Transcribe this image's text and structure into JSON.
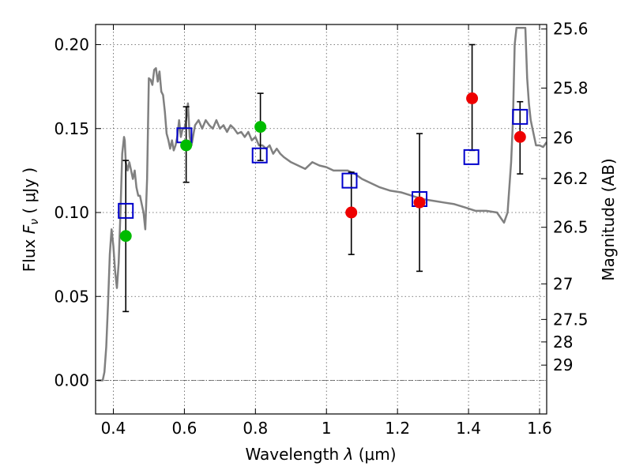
{
  "chart_data": {
    "type": "scatter",
    "xlabel_prefix": "Wavelength",
    "xlabel_symbol": "λ",
    "xlabel_unit": "(μm)",
    "ylabel_prefix": "Flux",
    "ylabel_symbol": "F",
    "ylabel_subscript": "ν",
    "ylabel_unit": "( μJy )",
    "y2label": "Magnitude (AB)",
    "xlim": [
      0.35,
      1.62
    ],
    "ylim": [
      -0.02,
      0.212
    ],
    "xticks": [
      {
        "value": 0.4,
        "label": "0.4"
      },
      {
        "value": 0.6,
        "label": "0.6"
      },
      {
        "value": 0.8,
        "label": "0.8"
      },
      {
        "value": 1.0,
        "label": "1"
      },
      {
        "value": 1.2,
        "label": "1.2"
      },
      {
        "value": 1.4,
        "label": "1.4"
      },
      {
        "value": 1.6,
        "label": "1.6"
      }
    ],
    "yticks": [
      {
        "value": 0.0,
        "label": "0.00"
      },
      {
        "value": 0.05,
        "label": "0.05"
      },
      {
        "value": 0.1,
        "label": "0.10"
      },
      {
        "value": 0.15,
        "label": "0.15"
      },
      {
        "value": 0.2,
        "label": "0.20"
      }
    ],
    "y2ticks": [
      {
        "flux": 0.2093,
        "label": "25.6"
      },
      {
        "flux": 0.1741,
        "label": "25.8"
      },
      {
        "flux": 0.1445,
        "label": "26"
      },
      {
        "flux": 0.1202,
        "label": "26.2"
      },
      {
        "flux": 0.0912,
        "label": "26.5"
      },
      {
        "flux": 0.0575,
        "label": "27"
      },
      {
        "flux": 0.0363,
        "label": "27.5"
      },
      {
        "flux": 0.0229,
        "label": "28"
      },
      {
        "flux": 0.0091,
        "label": "29"
      }
    ],
    "colors": {
      "sed": "#808080",
      "model": "#0000cc",
      "green": "#00bb00",
      "red": "#ee0000",
      "errorbar": "#000000",
      "zero_line": "#555555"
    },
    "series": [
      {
        "name": "SED template",
        "kind": "line",
        "x": [
          0.355,
          0.36,
          0.365,
          0.37,
          0.375,
          0.38,
          0.385,
          0.39,
          0.395,
          0.4,
          0.405,
          0.41,
          0.415,
          0.42,
          0.425,
          0.43,
          0.432,
          0.435,
          0.44,
          0.445,
          0.45,
          0.455,
          0.46,
          0.465,
          0.47,
          0.475,
          0.48,
          0.485,
          0.49,
          0.495,
          0.5,
          0.505,
          0.51,
          0.515,
          0.52,
          0.525,
          0.53,
          0.535,
          0.54,
          0.545,
          0.55,
          0.555,
          0.56,
          0.565,
          0.57,
          0.575,
          0.58,
          0.585,
          0.59,
          0.595,
          0.6,
          0.605,
          0.61,
          0.615,
          0.62,
          0.63,
          0.64,
          0.65,
          0.66,
          0.67,
          0.68,
          0.69,
          0.7,
          0.71,
          0.72,
          0.73,
          0.74,
          0.75,
          0.76,
          0.77,
          0.78,
          0.79,
          0.8,
          0.81,
          0.82,
          0.83,
          0.84,
          0.85,
          0.86,
          0.87,
          0.88,
          0.9,
          0.92,
          0.94,
          0.96,
          0.98,
          1.0,
          1.02,
          1.04,
          1.06,
          1.08,
          1.1,
          1.12,
          1.15,
          1.18,
          1.21,
          1.24,
          1.27,
          1.3,
          1.33,
          1.36,
          1.39,
          1.42,
          1.45,
          1.48,
          1.5,
          1.51,
          1.52,
          1.525,
          1.53,
          1.535,
          1.54,
          1.545,
          1.55,
          1.555,
          1.56,
          1.565,
          1.57,
          1.575,
          1.58,
          1.59,
          1.6,
          1.61,
          1.62
        ],
        "y": [
          0.0,
          0.0,
          0.0,
          0.0,
          0.005,
          0.02,
          0.045,
          0.075,
          0.09,
          0.08,
          0.065,
          0.055,
          0.07,
          0.1,
          0.135,
          0.145,
          0.143,
          0.13,
          0.125,
          0.13,
          0.125,
          0.12,
          0.125,
          0.115,
          0.11,
          0.11,
          0.105,
          0.1,
          0.09,
          0.12,
          0.18,
          0.179,
          0.176,
          0.185,
          0.186,
          0.178,
          0.184,
          0.172,
          0.17,
          0.16,
          0.147,
          0.143,
          0.138,
          0.143,
          0.137,
          0.14,
          0.145,
          0.155,
          0.145,
          0.15,
          0.15,
          0.155,
          0.165,
          0.145,
          0.14,
          0.152,
          0.155,
          0.15,
          0.155,
          0.152,
          0.15,
          0.155,
          0.15,
          0.152,
          0.148,
          0.152,
          0.15,
          0.147,
          0.148,
          0.145,
          0.148,
          0.143,
          0.145,
          0.14,
          0.14,
          0.138,
          0.14,
          0.135,
          0.138,
          0.135,
          0.133,
          0.13,
          0.128,
          0.126,
          0.13,
          0.128,
          0.127,
          0.125,
          0.125,
          0.125,
          0.123,
          0.12,
          0.118,
          0.115,
          0.113,
          0.112,
          0.11,
          0.108,
          0.107,
          0.106,
          0.105,
          0.103,
          0.101,
          0.101,
          0.1,
          0.094,
          0.1,
          0.13,
          0.155,
          0.2,
          0.21,
          0.21,
          0.21,
          0.21,
          0.21,
          0.21,
          0.18,
          0.165,
          0.155,
          0.15,
          0.14,
          0.14,
          0.139,
          0.142
        ]
      },
      {
        "name": "model fluxes",
        "kind": "open-square",
        "x": [
          0.435,
          0.6,
          0.812,
          1.065,
          1.262,
          1.408,
          1.545
        ],
        "y": [
          0.101,
          0.146,
          0.134,
          0.119,
          0.108,
          0.133,
          0.157
        ]
      },
      {
        "name": "green detections",
        "kind": "filled-circle",
        "x": [
          0.435,
          0.605,
          0.814
        ],
        "y": [
          0.086,
          0.14,
          0.151
        ],
        "err_low": [
          0.041,
          0.118,
          0.131
        ],
        "err_high": [
          0.131,
          0.163,
          0.171
        ]
      },
      {
        "name": "red detections",
        "kind": "filled-circle",
        "x": [
          1.07,
          1.262,
          1.41,
          1.545
        ],
        "y": [
          0.1,
          0.106,
          0.168,
          0.145
        ],
        "err_low": [
          0.075,
          0.065,
          0.137,
          0.123
        ],
        "err_high": [
          0.124,
          0.147,
          0.2,
          0.166
        ]
      }
    ]
  }
}
